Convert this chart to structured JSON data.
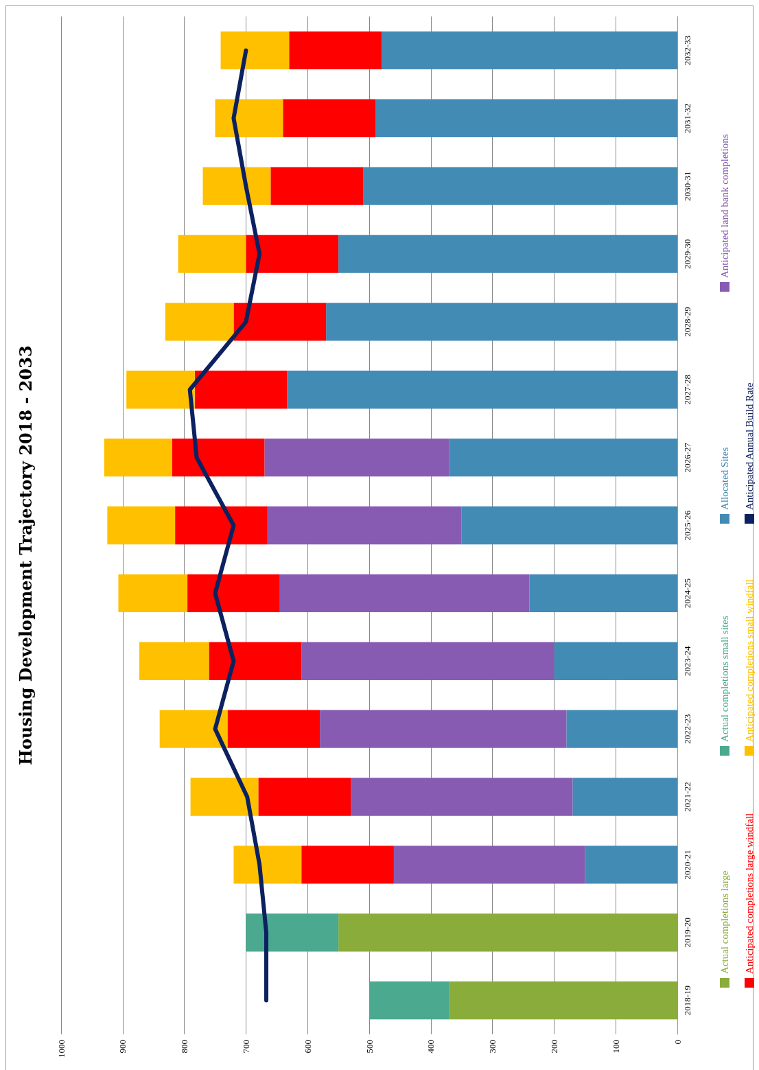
{
  "chart_data": {
    "type": "bar",
    "title": "Housing Development Trajectory 2018 - 2033",
    "stacked": true,
    "orientation": "horizontal",
    "categories": [
      "2032-33",
      "2031-32",
      "2030-31",
      "2029-30",
      "2028-29",
      "2027-28",
      "2026-27",
      "2025-26",
      "2024-25",
      "2023-24",
      "2022-23",
      "2021-22",
      "2020-21",
      "2019-20",
      "2018-19"
    ],
    "series": [
      {
        "name": "Actual completions large",
        "color": "#8aac3b",
        "values": [
          null,
          null,
          null,
          null,
          null,
          null,
          null,
          null,
          null,
          null,
          null,
          null,
          null,
          550,
          370
        ]
      },
      {
        "name": "Actual completions small sites",
        "color": "#4aa98f",
        "values": [
          null,
          null,
          null,
          null,
          null,
          null,
          null,
          null,
          null,
          null,
          null,
          null,
          null,
          150,
          130
        ]
      },
      {
        "name": "Allocated Sites",
        "color": "#428bb5",
        "values": [
          480,
          490,
          510,
          550,
          570,
          633,
          370,
          350,
          240,
          200,
          180,
          170,
          150,
          null,
          null
        ]
      },
      {
        "name": "Anticipated land bank completions",
        "color": "#875bb2",
        "values": [
          null,
          null,
          null,
          null,
          null,
          null,
          300,
          315,
          405,
          410,
          400,
          360,
          310,
          null,
          null
        ]
      },
      {
        "name": "Anticipated completions large windfall",
        "color": "#ff0000",
        "values": [
          150,
          150,
          150,
          150,
          150,
          150,
          150,
          150,
          150,
          150,
          150,
          150,
          150,
          null,
          null
        ]
      },
      {
        "name": "Anticipated completions small windfall",
        "color": "#ffc000",
        "values": [
          111,
          110,
          110,
          110,
          111,
          111,
          110,
          110,
          112,
          113,
          110,
          110,
          110,
          null,
          null
        ]
      },
      {
        "name": "Anticipated Annual Build Rate",
        "type": "line",
        "color": "#0c2160",
        "values": [
          700,
          720,
          700,
          678,
          700,
          791,
          780,
          720,
          750,
          720,
          750,
          698,
          678,
          667,
          667
        ]
      }
    ],
    "xlim": [
      1000,
      0
    ],
    "xticks": [
      0,
      100,
      200,
      300,
      400,
      500,
      600,
      700,
      800,
      900,
      1000
    ],
    "grid": "x",
    "legend": "right",
    "marker": "none"
  }
}
